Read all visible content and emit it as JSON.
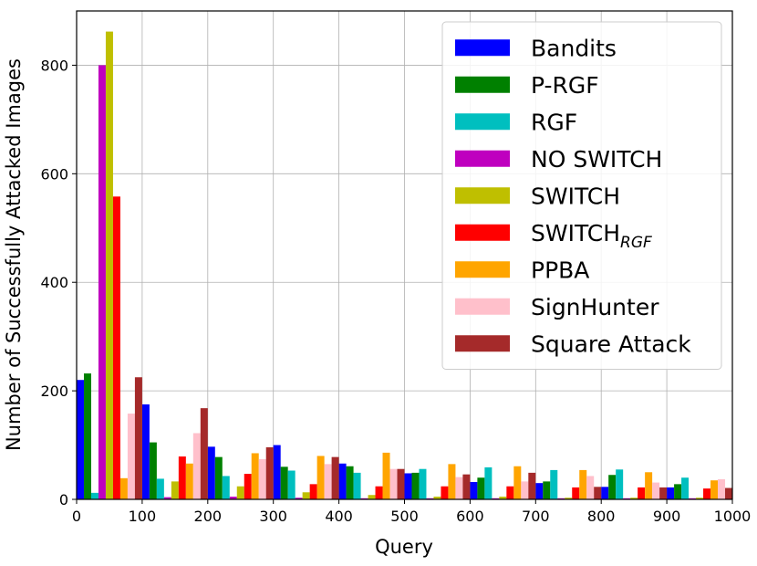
{
  "chart_data": {
    "type": "bar",
    "xlabel": "Query",
    "ylabel": "Number of Successfully Attacked Images",
    "xlim": [
      0,
      1000
    ],
    "ylim": [
      0,
      900
    ],
    "xticks": [
      0,
      100,
      200,
      300,
      400,
      500,
      600,
      700,
      800,
      900,
      1000
    ],
    "yticks": [
      0,
      200,
      400,
      600,
      800
    ],
    "grid": true,
    "legend_position": "top-right",
    "bin_width": 100,
    "bin_starts": [
      0,
      100,
      200,
      300,
      400,
      500,
      600,
      700,
      800,
      900
    ],
    "series": [
      {
        "name": "Bandits",
        "color": "#0000ff",
        "values": [
          220,
          175,
          97,
          100,
          66,
          48,
          32,
          30,
          23,
          22
        ]
      },
      {
        "name": "P-RGF",
        "color": "#008000",
        "values": [
          232,
          105,
          78,
          60,
          61,
          49,
          40,
          33,
          45,
          28
        ]
      },
      {
        "name": "RGF",
        "color": "#00bfbf",
        "values": [
          12,
          38,
          43,
          53,
          49,
          56,
          59,
          54,
          55,
          40
        ]
      },
      {
        "name": "NO SWITCH",
        "color": "#bf00bf",
        "values": [
          800,
          4,
          5,
          3,
          2,
          2,
          2,
          2,
          2,
          2
        ]
      },
      {
        "name": "SWITCH",
        "color": "#bfbf00",
        "values": [
          862,
          33,
          24,
          13,
          8,
          5,
          5,
          3,
          3,
          3
        ]
      },
      {
        "name": "SWITCH",
        "name_subscript": "RGF",
        "color": "#ff0000",
        "values": [
          558,
          79,
          47,
          28,
          24,
          24,
          24,
          22,
          22,
          20
        ]
      },
      {
        "name": "PPBA",
        "color": "#ffa500",
        "values": [
          39,
          66,
          85,
          80,
          86,
          65,
          61,
          54,
          50,
          35
        ]
      },
      {
        "name": "SignHunter",
        "color": "#ffc0cb",
        "values": [
          158,
          122,
          74,
          65,
          56,
          41,
          33,
          43,
          31,
          37
        ]
      },
      {
        "name": "Square Attack",
        "color": "#a52a2a",
        "values": [
          225,
          168,
          96,
          78,
          56,
          46,
          49,
          23,
          22,
          21
        ]
      }
    ]
  }
}
